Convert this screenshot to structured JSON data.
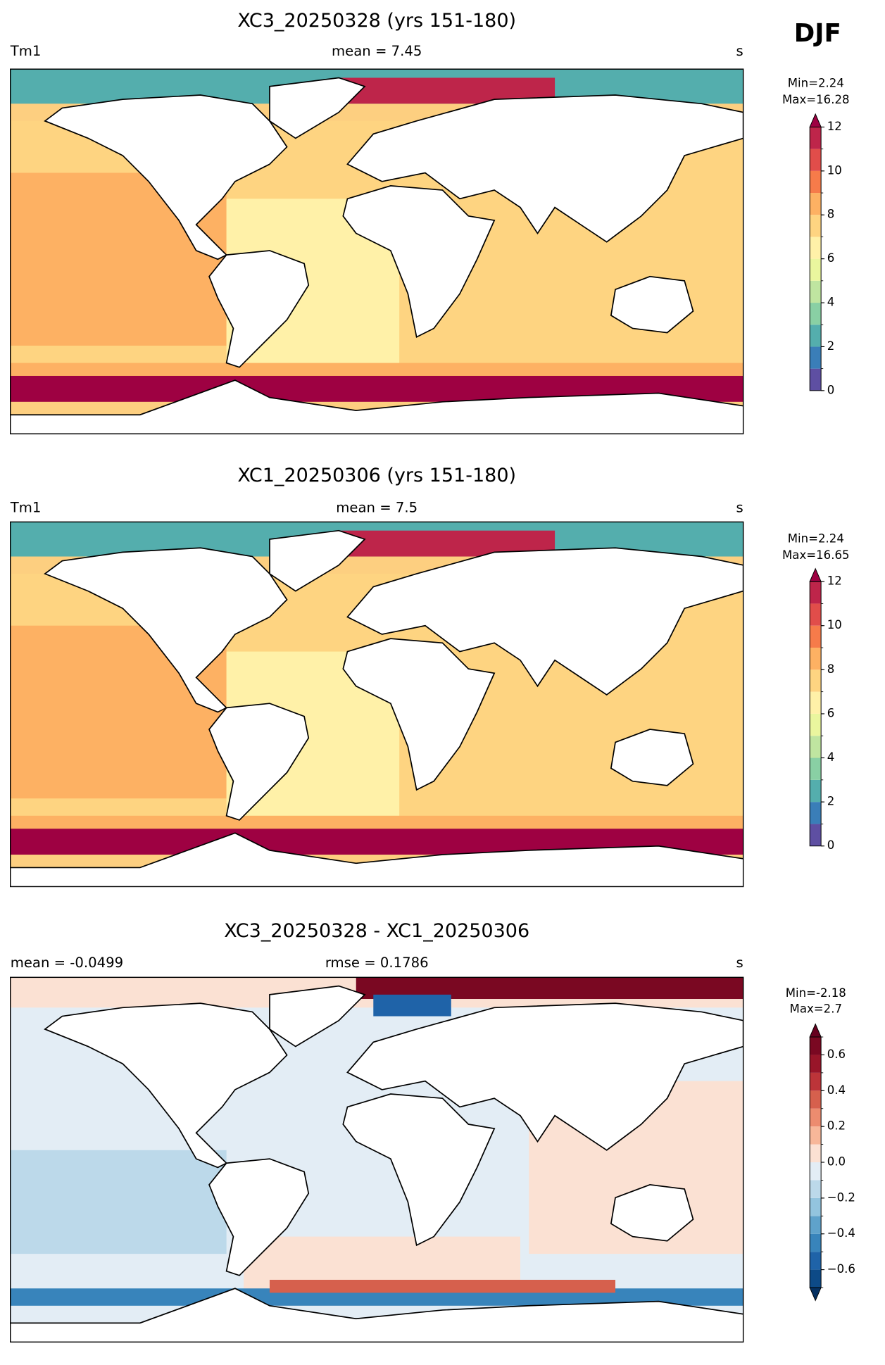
{
  "season": "DJF",
  "chart_data": [
    {
      "type": "map",
      "title": "XC3_20250328 (yrs 151-180)",
      "left_label": "Tm1",
      "center_label": "mean = 7.45",
      "right_label": "s",
      "min_label": "Min=2.24",
      "max_label": "Max=16.28",
      "colorbar": {
        "levels": [
          0,
          1,
          2,
          3,
          4,
          5,
          6,
          7,
          8,
          9,
          10,
          11,
          12
        ],
        "ticks": [
          0,
          2,
          4,
          6,
          8,
          10,
          12
        ],
        "colors": [
          "#5e4fa2",
          "#3a7eb8",
          "#54aead",
          "#89d0a4",
          "#bfe5a0",
          "#eaf69e",
          "#fff1a8",
          "#fed481",
          "#fdb163",
          "#f67b4a",
          "#e14d4a",
          "#be254a"
        ],
        "extend": "max",
        "over_color": "#9e0142"
      }
    },
    {
      "type": "map",
      "title": "XC1_20250306 (yrs 151-180)",
      "left_label": "Tm1",
      "center_label": "mean = 7.5",
      "right_label": "s",
      "min_label": "Min=2.24",
      "max_label": "Max=16.65",
      "colorbar": {
        "levels": [
          0,
          1,
          2,
          3,
          4,
          5,
          6,
          7,
          8,
          9,
          10,
          11,
          12
        ],
        "ticks": [
          0,
          2,
          4,
          6,
          8,
          10,
          12
        ],
        "colors": [
          "#5e4fa2",
          "#3a7eb8",
          "#54aead",
          "#89d0a4",
          "#bfe5a0",
          "#eaf69e",
          "#fff1a8",
          "#fed481",
          "#fdb163",
          "#f67b4a",
          "#e14d4a",
          "#be254a"
        ],
        "extend": "max",
        "over_color": "#9e0142"
      }
    },
    {
      "type": "map",
      "title": "XC3_20250328 - XC1_20250306",
      "left_label": "mean = -0.0499",
      "center_label": "rmse = 0.1786",
      "right_label": "s",
      "min_label": "Min=-2.18",
      "max_label": "Max=2.7",
      "colorbar": {
        "levels": [
          -0.7,
          -0.6,
          -0.5,
          -0.4,
          -0.3,
          -0.2,
          -0.1,
          0,
          0.1,
          0.2,
          0.3,
          0.4,
          0.5,
          0.6,
          0.7
        ],
        "ticks": [
          {
            "value": -0.6,
            "label": "−0.6"
          },
          {
            "value": -0.4,
            "label": "−0.4"
          },
          {
            "value": -0.2,
            "label": "−0.2"
          },
          {
            "value": 0,
            "label": "0.0"
          },
          0.2,
          0.4,
          0.6
        ],
        "colors": [
          "#0d4a87",
          "#1f63a8",
          "#3884bb",
          "#5fa2cb",
          "#93c4de",
          "#bcd9ea",
          "#e3edf5",
          "#fbe1d3",
          "#f7b799",
          "#ec8c6f",
          "#d6604d",
          "#bc3439",
          "#981529",
          "#7a0822"
        ],
        "extend": "both",
        "over_color": "#67001f",
        "under_color": "#053061"
      }
    }
  ]
}
